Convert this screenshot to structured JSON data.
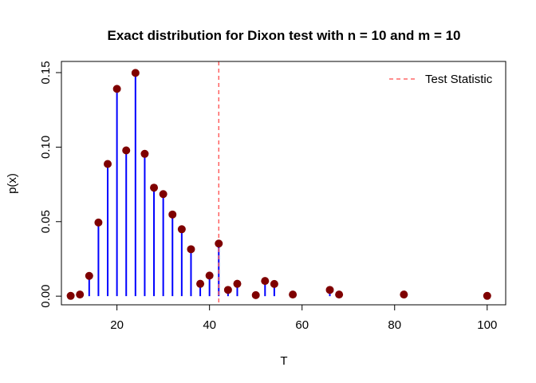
{
  "chart_data": {
    "type": "bar",
    "title": "Exact distribution for Dixon test with n = 10 and m = 10",
    "xlabel": "T",
    "ylabel": "p(x)",
    "xlim": [
      8,
      104
    ],
    "ylim": [
      -0.0058,
      0.1575
    ],
    "x_ticks": [
      20,
      40,
      60,
      80,
      100
    ],
    "x_tick_labels": [
      "20",
      "40",
      "60",
      "80",
      "100"
    ],
    "y_ticks": [
      0.0,
      0.05,
      0.1,
      0.15
    ],
    "y_tick_labels": [
      "0.00",
      "0.05",
      "0.10",
      "0.15"
    ],
    "grid": false,
    "legend_position": "top-right",
    "series": [
      {
        "name": "p(x)",
        "x": [
          10,
          12,
          14,
          16,
          18,
          20,
          22,
          24,
          26,
          28,
          30,
          32,
          34,
          36,
          38,
          40,
          42,
          44,
          46,
          50,
          52,
          54,
          58,
          66,
          68,
          82,
          100
        ],
        "values": [
          0.0002,
          0.0011,
          0.0136,
          0.0494,
          0.0887,
          0.1391,
          0.0978,
          0.1498,
          0.0955,
          0.0728,
          0.0685,
          0.0548,
          0.0449,
          0.0315,
          0.0083,
          0.0138,
          0.0353,
          0.0042,
          0.0083,
          0.0007,
          0.0102,
          0.0082,
          0.0011,
          0.0042,
          0.0011,
          0.0011,
          0.0002
        ]
      }
    ],
    "reference_line": {
      "label": "Test Statistic",
      "x": 42
    },
    "colors": {
      "stem": "#0000ff",
      "point": "#7f0000",
      "reference_line": "#ff4b4b"
    }
  }
}
